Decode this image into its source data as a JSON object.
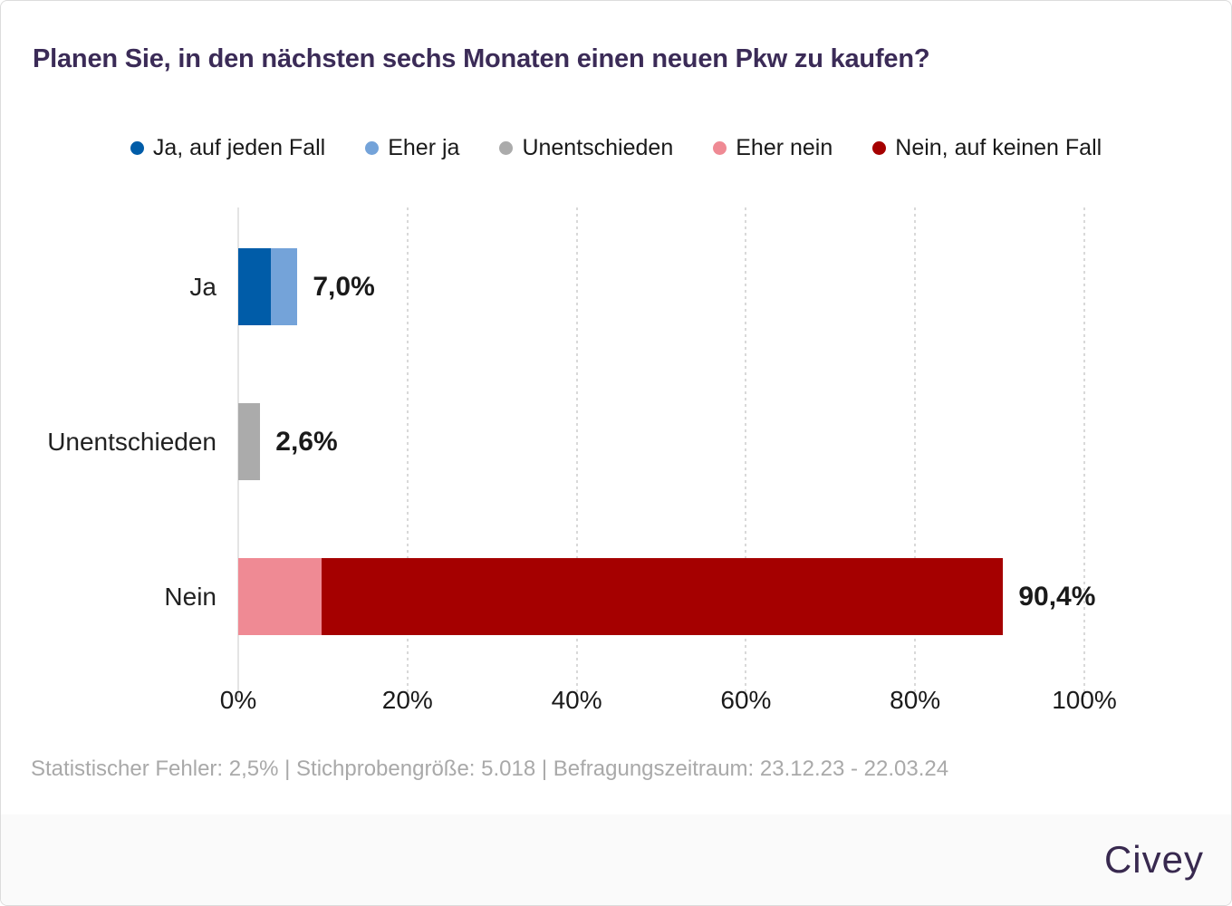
{
  "header": {
    "title": "Planen Sie, in den nächsten sechs Monaten einen neuen Pkw zu kaufen?"
  },
  "legend": {
    "items": [
      {
        "label": "Ja, auf jeden Fall",
        "color": "#005ca8"
      },
      {
        "label": "Eher ja",
        "color": "#74a3d9"
      },
      {
        "label": "Unentschieden",
        "color": "#ababab"
      },
      {
        "label": "Eher nein",
        "color": "#ef8a94"
      },
      {
        "label": "Nein, auf keinen Fall",
        "color": "#a50000"
      }
    ]
  },
  "chart_data": {
    "type": "bar",
    "orientation": "horizontal",
    "stacked": true,
    "title": "Planen Sie, in den nächsten sechs Monaten einen neuen Pkw zu kaufen?",
    "xlabel": "",
    "ylabel": "",
    "xlim": [
      0,
      100
    ],
    "x_ticks": [
      "0%",
      "20%",
      "40%",
      "60%",
      "80%",
      "100%"
    ],
    "grid": "vertical-dotted",
    "legend_position": "top-center",
    "categories": [
      "Ja",
      "Unentschieden",
      "Nein"
    ],
    "series": [
      {
        "name": "Ja, auf jeden Fall",
        "color": "#005ca8",
        "values": [
          3.9,
          0,
          0
        ]
      },
      {
        "name": "Eher ja",
        "color": "#74a3d9",
        "values": [
          3.1,
          0,
          0
        ]
      },
      {
        "name": "Unentschieden",
        "color": "#ababab",
        "values": [
          0,
          2.6,
          0
        ]
      },
      {
        "name": "Eher nein",
        "color": "#ef8a94",
        "values": [
          0,
          0,
          9.9
        ]
      },
      {
        "name": "Nein, auf keinen Fall",
        "color": "#a50000",
        "values": [
          0,
          0,
          80.5
        ]
      }
    ],
    "totals": [
      7.0,
      2.6,
      90.4
    ],
    "totals_labels": [
      "7,0%",
      "2,6%",
      "90,4%"
    ]
  },
  "footer": {
    "stats": "Statistischer Fehler: 2,5% | Stichprobengröße: 5.018 | Befragungszeitraum: 23.12.23 - 22.03.24",
    "brand": "Civey"
  },
  "colors": {
    "title": "#3b2b57",
    "brand": "#38294f",
    "axis_text": "#1a1a1a",
    "category_text": "#212121",
    "muted_text": "#a9a9a9",
    "grid": "#d9d9d9",
    "axis_line": "#e4e4e4",
    "footer_bg": "#fafafa",
    "card_border": "#dcdcdc"
  }
}
